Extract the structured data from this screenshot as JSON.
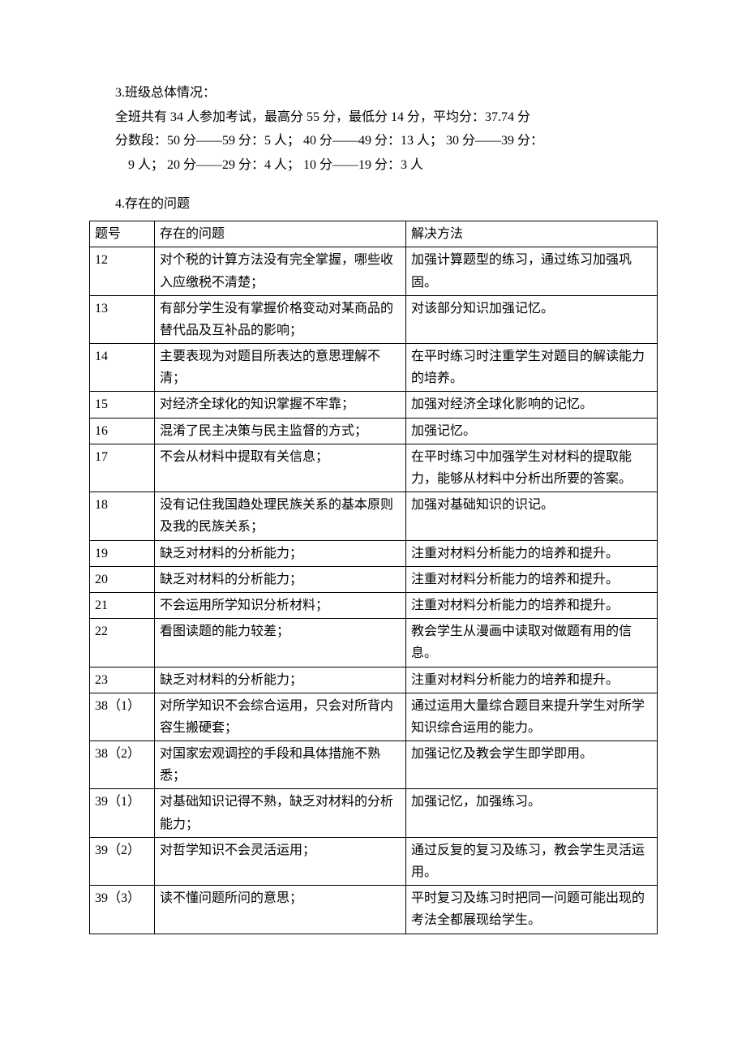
{
  "intro": {
    "line1": "3.班级总体情况：",
    "line2": "全班共有 34 人参加考试，最高分 55 分，最低分 14 分，平均分：37.74 分",
    "line3": "分数段：50 分——59 分：5 人；  40 分——49 分：13 人；  30 分——39 分：",
    "line4": "9 人；  20 分——29 分：4 人；  10 分——19 分：3 人"
  },
  "section4_title": "4.存在的问题",
  "table": {
    "headers": [
      "题号",
      "存在的问题",
      "解决方法"
    ],
    "rows": [
      [
        "12",
        "对个税的计算方法没有完全掌握，哪些收入应缴税不清楚；",
        "加强计算题型的练习，通过练习加强巩固。"
      ],
      [
        "13",
        "有部分学生没有掌握价格变动对某商品的替代品及互补品的影响；",
        "对该部分知识加强记忆。"
      ],
      [
        "14",
        "主要表现为对题目所表达的意思理解不清；",
        "在平时练习时注重学生对题目的解读能力的培养。"
      ],
      [
        "15",
        "对经济全球化的知识掌握不牢靠；",
        "加强对经济全球化影响的记忆。"
      ],
      [
        "16",
        "混淆了民主决策与民主监督的方式；",
        "加强记忆。"
      ],
      [
        "17",
        "不会从材料中提取有关信息；",
        "在平时练习中加强学生对材料的提取能力，能够从材料中分析出所要的答案。"
      ],
      [
        "18",
        "没有记住我国趋处理民族关系的基本原则及我的民族关系；",
        "加强对基础知识的识记。"
      ],
      [
        "19",
        "缺乏对材料的分析能力；",
        "注重对材料分析能力的培养和提升。"
      ],
      [
        "20",
        "缺乏对材料的分析能力；",
        "注重对材料分析能力的培养和提升。"
      ],
      [
        "21",
        "不会运用所学知识分析材料；",
        "注重对材料分析能力的培养和提升。"
      ],
      [
        "22",
        "看图读题的能力较差；",
        "教会学生从漫画中读取对做题有用的信息。"
      ],
      [
        "23",
        "缺乏对材料的分析能力；",
        "注重对材料分析能力的培养和提升。"
      ],
      [
        "38（1）",
        "对所学知识不会综合运用，只会对所背内容生搬硬套；",
        "通过运用大量综合题目来提升学生对所学知识综合运用的能力。"
      ],
      [
        "38（2）",
        "对国家宏观调控的手段和具体措施不熟悉；",
        "加强记忆及教会学生即学即用。"
      ],
      [
        "39（1）",
        "对基础知识记得不熟，缺乏对材料的分析能力；",
        "加强记忆，加强练习。"
      ],
      [
        "39（2）",
        "对哲学知识不会灵活运用；",
        "通过反复的复习及练习，教会学生灵活运用。"
      ],
      [
        "39（3）",
        "读不懂问题所问的意思；",
        "平时复习及练习时把同一问题可能出现的考法全都展现给学生。"
      ]
    ]
  }
}
